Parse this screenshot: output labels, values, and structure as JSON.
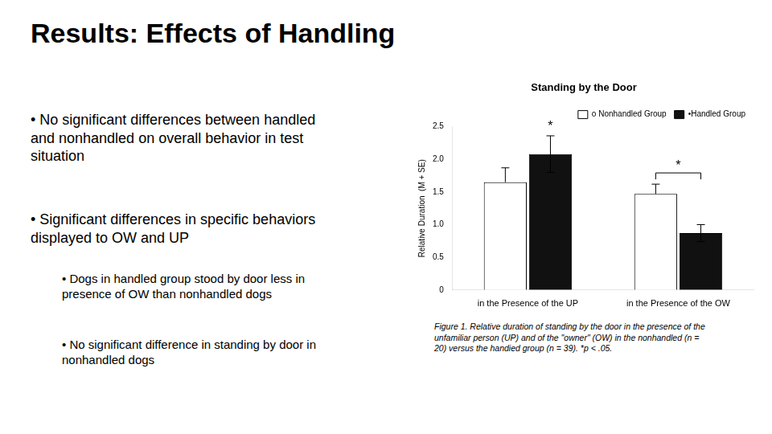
{
  "title": "Results: Effects of Handling",
  "annotations": [
    "• No significant differences between handled\nand nonhandled on overall behavior in test\nsituation",
    "• Significant differences in specific behaviors\ndisplayed to OW and UP",
    "• Dogs in handled group stood by door less in\npresence of OW than nonhandled dogs",
    "• No significant difference in standing by door in\nnonhandled dogs",
    "Figure 1.   Relative duration of standing by the door in the presence of the\nunfamiliar person (UP) and of the \"owner\" (OW) in the nonhandled (n =\n20) versus the handied group (n = 39).  *p < .05."
  ],
  "chart_data": {
    "type": "bar",
    "title": "Standing by the Door",
    "y_label": "Relative Duration  (M + SE)",
    "categories": [
      "in the Presence of the UP",
      "in the Presence of the OW"
    ],
    "series": [
      {
        "name": "o Nonhandled Group",
        "color": "#FFFFFF",
        "values": [
          1.65,
          1.47
        ],
        "errors": [
          0.22,
          0.15
        ]
      },
      {
        "name": "•Handled Group",
        "color": "#111111",
        "values": [
          2.08,
          0.87
        ],
        "errors": [
          0.28,
          0.13
        ]
      }
    ],
    "annotations": [
      "*",
      "*"
    ],
    "ylim": [
      0,
      2.5
    ],
    "yticks": [
      0,
      0.5,
      {
        "value": 1,
        "label": "1.0"
      },
      1.5,
      {
        "value": 2,
        "label": "2.0"
      },
      2.5
    ],
    "grid": false,
    "legend": "upper right"
  }
}
